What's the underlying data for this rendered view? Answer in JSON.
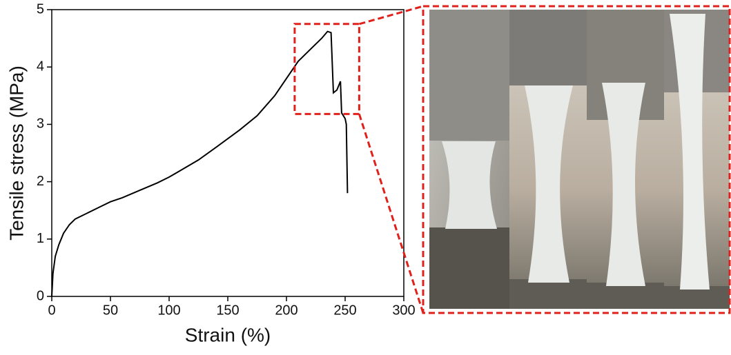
{
  "chart_data": {
    "type": "line",
    "xlabel": "Strain (%)",
    "ylabel": "Tensile stress (MPa)",
    "x": [
      0,
      1,
      3,
      6,
      10,
      15,
      20,
      30,
      40,
      50,
      60,
      75,
      90,
      100,
      110,
      125,
      140,
      150,
      160,
      175,
      190,
      200,
      210,
      220,
      230,
      235,
      238,
      240,
      243,
      246,
      247,
      250,
      251,
      252
    ],
    "values": [
      0,
      0.4,
      0.7,
      0.9,
      1.1,
      1.25,
      1.35,
      1.45,
      1.55,
      1.65,
      1.72,
      1.85,
      1.98,
      2.08,
      2.2,
      2.38,
      2.6,
      2.75,
      2.9,
      3.15,
      3.5,
      3.8,
      4.1,
      4.3,
      4.5,
      4.62,
      4.6,
      3.55,
      3.6,
      3.75,
      3.2,
      3.1,
      3.0,
      1.8
    ],
    "color": "#000000",
    "xlim": [
      0,
      300
    ],
    "xticks": [
      0,
      50,
      100,
      150,
      200,
      250,
      300
    ],
    "ylim": [
      0,
      5
    ],
    "yticks": [
      0,
      1,
      2,
      3,
      4,
      5
    ],
    "zoom_box": {
      "xlim": [
        207,
        262
      ],
      "ylim": [
        3.18,
        4.75
      ],
      "color": "#e0201b"
    }
  }
}
